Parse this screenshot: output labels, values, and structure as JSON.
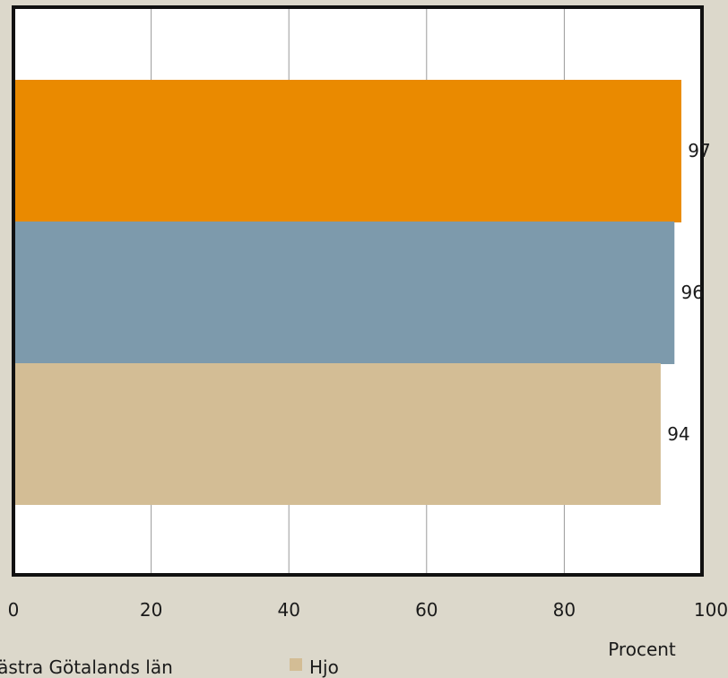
{
  "chart_data": {
    "type": "bar",
    "orientation": "horizontal",
    "xlabel": "Procent",
    "xlim": [
      0,
      100
    ],
    "x_ticks": [
      "0",
      "20",
      "40",
      "60",
      "80",
      "100"
    ],
    "grid": true,
    "series": [
      {
        "name": "",
        "value": 97,
        "color": "#ea8a00"
      },
      {
        "name": "Västra Götalands län",
        "value": 96,
        "color": "#7d9aac"
      },
      {
        "name": "Hjo",
        "value": 94,
        "color": "#d3bd95"
      }
    ],
    "legend": {
      "position": "bottom",
      "entries": [
        {
          "label": "Västra Götalands län",
          "color": "#7d9aac"
        },
        {
          "label": "Hjo",
          "color": "#d3bd95"
        }
      ]
    }
  }
}
